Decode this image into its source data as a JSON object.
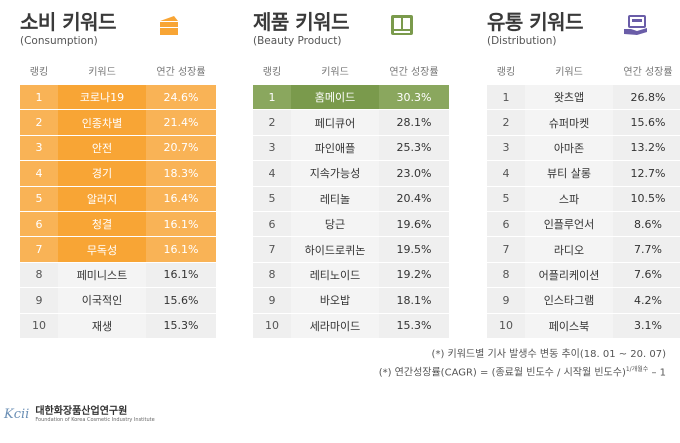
{
  "panels": [
    {
      "title": "소비 키워드",
      "subtitle": "(Consumption)",
      "icon": "cake-icon",
      "highlight_color": "#f8a535",
      "headers": [
        "랭킹",
        "키워드",
        "연간 성장률"
      ],
      "rows": [
        {
          "rank": "1",
          "keyword": "코로나19",
          "rate": "24.6%"
        },
        {
          "rank": "2",
          "keyword": "인종차별",
          "rate": "21.4%"
        },
        {
          "rank": "3",
          "keyword": "안전",
          "rate": "20.7%"
        },
        {
          "rank": "4",
          "keyword": "경기",
          "rate": "18.3%"
        },
        {
          "rank": "5",
          "keyword": "알러지",
          "rate": "16.4%"
        },
        {
          "rank": "6",
          "keyword": "청결",
          "rate": "16.1%"
        },
        {
          "rank": "7",
          "keyword": "무독성",
          "rate": "16.1%"
        },
        {
          "rank": "8",
          "keyword": "페미니스트",
          "rate": "16.1%"
        },
        {
          "rank": "9",
          "keyword": "이국적인",
          "rate": "15.6%"
        },
        {
          "rank": "10",
          "keyword": "재생",
          "rate": "15.3%"
        }
      ]
    },
    {
      "title": "제품 키워드",
      "subtitle": "(Beauty Product)",
      "icon": "product-box-icon",
      "highlight_color": "#7a9a4c",
      "headers": [
        "랭킹",
        "키워드",
        "연간 성장률"
      ],
      "rows": [
        {
          "rank": "1",
          "keyword": "홈메이드",
          "rate": "30.3%"
        },
        {
          "rank": "2",
          "keyword": "페디큐어",
          "rate": "28.1%"
        },
        {
          "rank": "3",
          "keyword": "파인애플",
          "rate": "25.3%"
        },
        {
          "rank": "4",
          "keyword": "지속가능성",
          "rate": "23.0%"
        },
        {
          "rank": "5",
          "keyword": "레티놀",
          "rate": "20.4%"
        },
        {
          "rank": "6",
          "keyword": "당근",
          "rate": "19.6%"
        },
        {
          "rank": "7",
          "keyword": "하이드로퀴논",
          "rate": "19.5%"
        },
        {
          "rank": "8",
          "keyword": "레티노이드",
          "rate": "19.2%"
        },
        {
          "rank": "9",
          "keyword": "바오밥",
          "rate": "18.1%"
        },
        {
          "rank": "10",
          "keyword": "세라마이드",
          "rate": "15.3%"
        }
      ]
    },
    {
      "title": "유통 키워드",
      "subtitle": "(Distribution)",
      "icon": "delivery-hand-icon",
      "highlight_color": "#6a5da8",
      "headers": [
        "랭킹",
        "키워드",
        "연간 성장률"
      ],
      "rows": [
        {
          "rank": "1",
          "keyword": "왓츠앱",
          "rate": "26.8%"
        },
        {
          "rank": "2",
          "keyword": "슈퍼마켓",
          "rate": "15.6%"
        },
        {
          "rank": "3",
          "keyword": "아마존",
          "rate": "13.2%"
        },
        {
          "rank": "4",
          "keyword": "뷰티 살롱",
          "rate": "12.7%"
        },
        {
          "rank": "5",
          "keyword": "스파",
          "rate": "10.5%"
        },
        {
          "rank": "6",
          "keyword": "인플루언서",
          "rate": "8.6%"
        },
        {
          "rank": "7",
          "keyword": "라디오",
          "rate": "7.7%"
        },
        {
          "rank": "8",
          "keyword": "어플리케이션",
          "rate": "7.6%"
        },
        {
          "rank": "9",
          "keyword": "인스타그램",
          "rate": "4.2%"
        },
        {
          "rank": "10",
          "keyword": "페이스북",
          "rate": "3.1%"
        }
      ]
    }
  ],
  "notes": {
    "line1": "(*) 키워드별 기사 발생수 변동 추이(18. 01 ~ 20. 07)",
    "line2": "(*) 연간성장률(CAGR) = (종료월 빈도수 / 시작월 빈도수)",
    "line2_sup": "1/개월수",
    "line2_end": " – 1"
  },
  "footer": {
    "logo": "Kcii",
    "org_name": "대한화장품산업연구원",
    "org_name_en": "Foundation of Korea Cosmetic Industry Institute"
  }
}
